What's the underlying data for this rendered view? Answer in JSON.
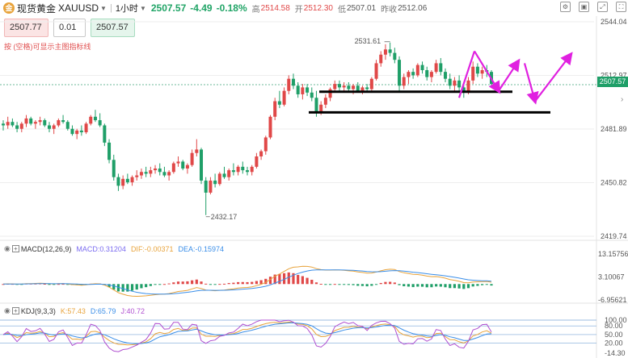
{
  "header": {
    "symbol_name": "现货黄金",
    "symbol_code": "XAUUSD",
    "timeframe": "1小时",
    "last_price": "2507.57",
    "change": "-4.49",
    "change_pct": "-0.18%",
    "high_label": "高",
    "high_value": "2514.58",
    "open_label": "开",
    "open_value": "2512.30",
    "low_label": "低",
    "low_value": "2507.01",
    "prev_label": "昨收",
    "prev_value": "2512.06"
  },
  "trade": {
    "sell_price": "2507.77",
    "quantity": "0.01",
    "buy_price": "2507.57"
  },
  "hint": "按 (空格)可显示主图指标线",
  "price_axis": {
    "ticks": [
      "2544.04",
      "2512.97",
      "2481.89",
      "2450.82",
      "2419.74"
    ],
    "last_tag": "2507.57"
  },
  "annotations": {
    "high_marker": "2531.61",
    "low_marker": "2432.17"
  },
  "macd": {
    "name": "MACD(12,26,9)",
    "macd": "MACD:0.31204",
    "dif": "DIF:-0.00371",
    "dea": "DEA:-0.15974",
    "ticks": [
      "13.15756",
      "3.10067",
      "-6.95621"
    ]
  },
  "kdj": {
    "name": "KDJ(9,3,3)",
    "k": "K:57.43",
    "d": "D:65.79",
    "j": "J:40.72",
    "ticks": [
      "100.00",
      "80.00",
      "50.00",
      "20.00",
      "-14.30"
    ]
  },
  "chart_data": {
    "type": "candlestick",
    "title": "现货黄金 XAUUSD 1小时",
    "ylim": [
      2419.74,
      2544.04
    ],
    "colors": {
      "up": "#e04848",
      "down": "#1f9f68",
      "projection": "#e020e0",
      "support": "#000000"
    },
    "support_levels": [
      2503.5,
      2491.5
    ],
    "projection_path": [
      2500,
      2527,
      2504,
      2521,
      2498,
      2525
    ],
    "ohlc": [
      [
        2485,
        2487,
        2481,
        2484
      ],
      [
        2484,
        2489,
        2482,
        2486
      ],
      [
        2486,
        2488,
        2483,
        2484
      ],
      [
        2484,
        2486,
        2480,
        2482
      ],
      [
        2482,
        2486,
        2480,
        2485
      ],
      [
        2485,
        2490,
        2483,
        2488
      ],
      [
        2488,
        2489,
        2484,
        2485
      ],
      [
        2485,
        2487,
        2482,
        2486
      ],
      [
        2486,
        2489,
        2484,
        2487
      ],
      [
        2487,
        2488,
        2483,
        2484
      ],
      [
        2484,
        2486,
        2480,
        2482
      ],
      [
        2482,
        2485,
        2479,
        2484
      ],
      [
        2484,
        2488,
        2483,
        2487
      ],
      [
        2487,
        2490,
        2485,
        2486
      ],
      [
        2486,
        2487,
        2481,
        2482
      ],
      [
        2482,
        2484,
        2478,
        2479
      ],
      [
        2479,
        2482,
        2476,
        2481
      ],
      [
        2481,
        2484,
        2478,
        2480
      ],
      [
        2480,
        2486,
        2479,
        2485
      ],
      [
        2485,
        2490,
        2484,
        2489
      ],
      [
        2489,
        2493,
        2486,
        2487
      ],
      [
        2487,
        2491,
        2483,
        2484
      ],
      [
        2484,
        2485,
        2472,
        2474
      ],
      [
        2474,
        2476,
        2462,
        2464
      ],
      [
        2464,
        2467,
        2452,
        2454
      ],
      [
        2454,
        2456,
        2446,
        2449
      ],
      [
        2449,
        2455,
        2447,
        2453
      ],
      [
        2453,
        2456,
        2450,
        2451
      ],
      [
        2451,
        2455,
        2449,
        2454
      ],
      [
        2454,
        2458,
        2452,
        2455
      ],
      [
        2455,
        2459,
        2453,
        2457
      ],
      [
        2457,
        2460,
        2454,
        2456
      ],
      [
        2456,
        2460,
        2454,
        2458
      ],
      [
        2458,
        2461,
        2456,
        2459
      ],
      [
        2459,
        2462,
        2455,
        2457
      ],
      [
        2457,
        2460,
        2454,
        2455
      ],
      [
        2455,
        2458,
        2452,
        2457
      ],
      [
        2457,
        2463,
        2456,
        2462
      ],
      [
        2462,
        2466,
        2460,
        2463
      ],
      [
        2463,
        2464,
        2458,
        2459
      ],
      [
        2459,
        2462,
        2456,
        2461
      ],
      [
        2461,
        2470,
        2460,
        2468
      ],
      [
        2468,
        2476,
        2466,
        2470
      ],
      [
        2470,
        2471,
        2450,
        2452
      ],
      [
        2452,
        2454,
        2432,
        2445
      ],
      [
        2445,
        2454,
        2444,
        2452
      ],
      [
        2452,
        2456,
        2448,
        2450
      ],
      [
        2450,
        2457,
        2449,
        2456
      ],
      [
        2456,
        2460,
        2453,
        2454
      ],
      [
        2454,
        2459,
        2452,
        2458
      ],
      [
        2458,
        2462,
        2455,
        2457
      ],
      [
        2457,
        2461,
        2455,
        2460
      ],
      [
        2460,
        2463,
        2456,
        2458
      ],
      [
        2458,
        2460,
        2455,
        2457
      ],
      [
        2457,
        2461,
        2455,
        2460
      ],
      [
        2460,
        2468,
        2459,
        2466
      ],
      [
        2466,
        2470,
        2464,
        2469
      ],
      [
        2469,
        2478,
        2467,
        2477
      ],
      [
        2477,
        2490,
        2476,
        2489
      ],
      [
        2489,
        2500,
        2487,
        2498
      ],
      [
        2498,
        2504,
        2494,
        2496
      ],
      [
        2496,
        2506,
        2495,
        2504
      ],
      [
        2504,
        2513,
        2502,
        2511
      ],
      [
        2511,
        2514,
        2505,
        2507
      ],
      [
        2507,
        2509,
        2500,
        2502
      ],
      [
        2502,
        2508,
        2499,
        2506
      ],
      [
        2506,
        2508,
        2501,
        2503
      ],
      [
        2503,
        2506,
        2498,
        2500
      ],
      [
        2500,
        2504,
        2489,
        2492
      ],
      [
        2492,
        2498,
        2490,
        2496
      ],
      [
        2496,
        2502,
        2494,
        2500
      ],
      [
        2500,
        2506,
        2498,
        2505
      ],
      [
        2505,
        2510,
        2503,
        2508
      ],
      [
        2508,
        2510,
        2504,
        2506
      ],
      [
        2506,
        2509,
        2503,
        2507
      ],
      [
        2507,
        2509,
        2504,
        2505
      ],
      [
        2505,
        2508,
        2502,
        2507
      ],
      [
        2507,
        2509,
        2503,
        2504
      ],
      [
        2504,
        2507,
        2502,
        2506
      ],
      [
        2506,
        2508,
        2503,
        2505
      ],
      [
        2505,
        2512,
        2504,
        2511
      ],
      [
        2511,
        2522,
        2510,
        2520
      ],
      [
        2520,
        2527,
        2518,
        2525
      ],
      [
        2525,
        2531,
        2522,
        2528
      ],
      [
        2528,
        2532,
        2524,
        2526
      ],
      [
        2526,
        2529,
        2520,
        2522
      ],
      [
        2522,
        2524,
        2504,
        2507
      ],
      [
        2507,
        2514,
        2505,
        2512
      ],
      [
        2512,
        2516,
        2508,
        2515
      ],
      [
        2515,
        2517,
        2511,
        2513
      ],
      [
        2513,
        2520,
        2512,
        2519
      ],
      [
        2519,
        2521,
        2514,
        2516
      ],
      [
        2516,
        2518,
        2510,
        2512
      ],
      [
        2512,
        2516,
        2509,
        2515
      ],
      [
        2515,
        2522,
        2514,
        2520
      ],
      [
        2520,
        2523,
        2513,
        2515
      ],
      [
        2515,
        2517,
        2509,
        2511
      ],
      [
        2511,
        2514,
        2505,
        2507
      ],
      [
        2507,
        2512,
        2504,
        2510
      ],
      [
        2510,
        2513,
        2504,
        2506
      ],
      [
        2506,
        2509,
        2500,
        2503
      ],
      [
        2503,
        2512,
        2502,
        2510
      ],
      [
        2510,
        2521,
        2508,
        2518
      ],
      [
        2518,
        2520,
        2512,
        2514
      ],
      [
        2514,
        2518,
        2511,
        2516
      ],
      [
        2516,
        2519,
        2512,
        2515
      ],
      [
        2515,
        2516,
        2506,
        2508
      ]
    ]
  }
}
